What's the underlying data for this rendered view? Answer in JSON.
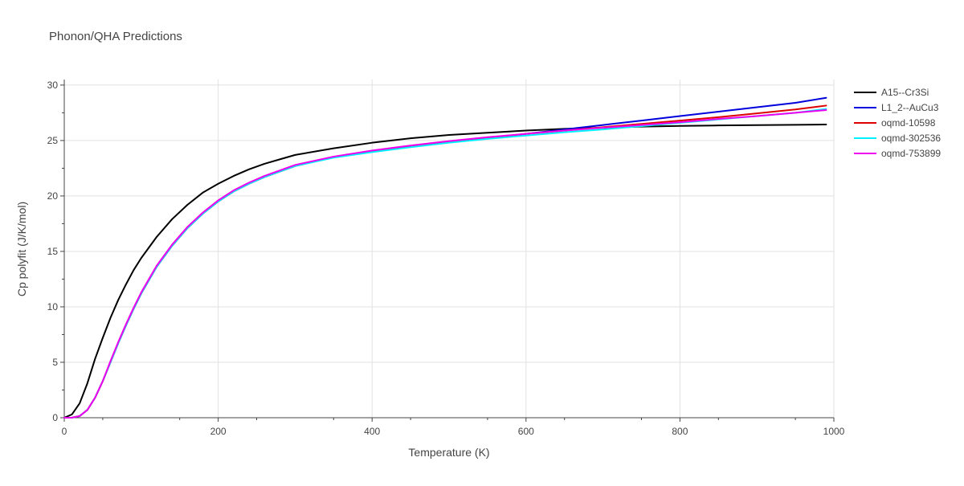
{
  "chart_data": {
    "type": "line",
    "title": "Phonon/QHA Predictions",
    "xlabel": "Temperature (K)",
    "ylabel": "Cp polyfit (J/K/mol)",
    "xlim": [
      0,
      1000
    ],
    "ylim": [
      0,
      30.5
    ],
    "x_ticks": [
      0,
      200,
      400,
      600,
      800,
      1000
    ],
    "y_ticks": [
      0,
      5,
      10,
      15,
      20,
      25,
      30
    ],
    "grid": true,
    "legend_position": "right",
    "x": [
      0,
      10,
      20,
      30,
      40,
      50,
      60,
      70,
      80,
      90,
      100,
      120,
      140,
      160,
      180,
      200,
      220,
      240,
      260,
      280,
      300,
      350,
      400,
      450,
      500,
      550,
      600,
      650,
      700,
      750,
      800,
      850,
      900,
      950,
      990
    ],
    "series": [
      {
        "name": "A15--Cr3Si",
        "color": "#000000",
        "values": [
          0,
          0.3,
          1.3,
          3.1,
          5.3,
          7.2,
          9.0,
          10.6,
          12.0,
          13.3,
          14.4,
          16.3,
          17.9,
          19.2,
          20.3,
          21.1,
          21.8,
          22.4,
          22.9,
          23.3,
          23.7,
          24.3,
          24.8,
          25.2,
          25.5,
          25.7,
          25.9,
          26.05,
          26.15,
          26.25,
          26.32,
          26.36,
          26.39,
          26.42,
          26.44
        ]
      },
      {
        "name": "L1_2--AuCu3",
        "color": "#0000dd",
        "values": [
          0,
          0.01,
          0.15,
          0.7,
          1.8,
          3.3,
          5.0,
          6.7,
          8.3,
          9.8,
          11.2,
          13.6,
          15.5,
          17.1,
          18.4,
          19.5,
          20.4,
          21.1,
          21.7,
          22.2,
          22.7,
          23.5,
          24.0,
          24.5,
          24.9,
          25.2,
          25.6,
          26.0,
          26.4,
          26.8,
          27.2,
          27.6,
          28.0,
          28.4,
          28.85
        ]
      },
      {
        "name": "oqmd-10598",
        "color": "#dd0000",
        "values": [
          0,
          0.01,
          0.15,
          0.7,
          1.8,
          3.3,
          5.0,
          6.7,
          8.3,
          9.8,
          11.2,
          13.6,
          15.5,
          17.1,
          18.4,
          19.5,
          20.4,
          21.1,
          21.7,
          22.2,
          22.7,
          23.5,
          24.0,
          24.5,
          24.9,
          25.25,
          25.6,
          25.9,
          26.2,
          26.5,
          26.8,
          27.1,
          27.45,
          27.8,
          28.15
        ]
      },
      {
        "name": "oqmd-302536",
        "color": "#00f0ff",
        "values": [
          0,
          0.01,
          0.15,
          0.7,
          1.8,
          3.3,
          5.0,
          6.7,
          8.3,
          9.8,
          11.2,
          13.6,
          15.5,
          17.1,
          18.4,
          19.5,
          20.4,
          21.1,
          21.7,
          22.2,
          22.7,
          23.45,
          23.95,
          24.4,
          24.8,
          25.15,
          25.45,
          25.75,
          26.0,
          26.3,
          26.6,
          26.9,
          27.2,
          27.5,
          27.85
        ]
      },
      {
        "name": "oqmd-753899",
        "color": "#ee00ee",
        "values": [
          0,
          0.01,
          0.15,
          0.7,
          1.8,
          3.3,
          5.1,
          6.8,
          8.4,
          9.9,
          11.3,
          13.7,
          15.6,
          17.2,
          18.5,
          19.6,
          20.5,
          21.2,
          21.8,
          22.3,
          22.8,
          23.55,
          24.1,
          24.55,
          24.95,
          25.3,
          25.6,
          25.9,
          26.15,
          26.4,
          26.65,
          26.95,
          27.2,
          27.5,
          27.75
        ]
      }
    ]
  }
}
